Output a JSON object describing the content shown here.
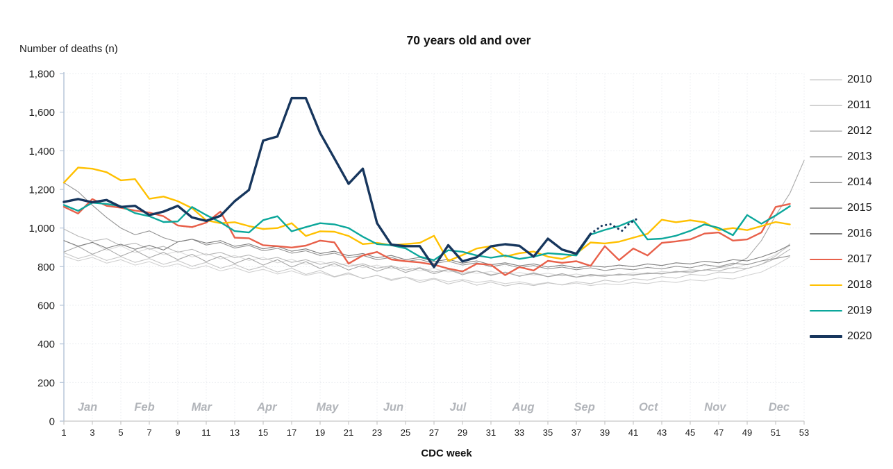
{
  "title": "70 years old and over",
  "y_axis": {
    "label": "Number of deaths (n)",
    "min": 0,
    "max": 1800,
    "step": 200,
    "tick_labels": [
      "0",
      "200",
      "400",
      "600",
      "800",
      "1,000",
      "1,200",
      "1,400",
      "1,600",
      "1,800"
    ]
  },
  "x_axis": {
    "label": "CDC week",
    "min": 1,
    "max": 53,
    "ticks": [
      1,
      3,
      5,
      7,
      9,
      11,
      13,
      15,
      17,
      19,
      21,
      23,
      25,
      27,
      29,
      31,
      33,
      35,
      37,
      39,
      41,
      43,
      45,
      47,
      49,
      51,
      53
    ]
  },
  "month_labels": [
    {
      "label": "Jan",
      "week": 2.66
    },
    {
      "label": "Feb",
      "week": 6.66
    },
    {
      "label": "Mar",
      "week": 10.67
    },
    {
      "label": "Apr",
      "week": 15.26
    },
    {
      "label": "May",
      "week": 19.51
    },
    {
      "label": "Jun",
      "week": 24.14
    },
    {
      "label": "Jul",
      "week": 28.68
    },
    {
      "label": "Aug",
      "week": 33.27
    },
    {
      "label": "Sep",
      "week": 37.57
    },
    {
      "label": "Oct",
      "week": 42.06
    },
    {
      "label": "Nov",
      "week": 46.75
    },
    {
      "label": "Dec",
      "week": 51.24
    }
  ],
  "legend": [
    {
      "label": "2010",
      "color": "#dcdcdc",
      "width": 1.2
    },
    {
      "label": "2011",
      "color": "#d2d2d2",
      "width": 1.2
    },
    {
      "label": "2012",
      "color": "#c6c6c6",
      "width": 1.2
    },
    {
      "label": "2013",
      "color": "#b7b7b7",
      "width": 1.2
    },
    {
      "label": "2014",
      "color": "#a8a8a8",
      "width": 1.2
    },
    {
      "label": "2015",
      "color": "#939393",
      "width": 1.2
    },
    {
      "label": "2016",
      "color": "#7d7d7d",
      "width": 1.2
    },
    {
      "label": "2017",
      "color": "#e8604a",
      "width": 2.4
    },
    {
      "label": "2018",
      "color": "#ffc000",
      "width": 2.4
    },
    {
      "label": "2019",
      "color": "#0ca79b",
      "width": 2.4
    },
    {
      "label": "2020",
      "color": "#17365d",
      "width": 3.4
    }
  ],
  "chart_data": {
    "type": "line",
    "title": "70 years old and over",
    "xlabel": "CDC week",
    "ylabel": "Number of deaths (n)",
    "x_start_week": 1,
    "xlim": [
      1,
      53
    ],
    "ylim": [
      0,
      1800
    ],
    "grid": "dotted horizontal and vertical",
    "legend_position": "right",
    "series": [
      {
        "name": "2010",
        "color": "#dcdcdc",
        "stroke_width": 1.1,
        "values": [
          935,
          902,
          925,
          885,
          908,
          872,
          895,
          862,
          880,
          850,
          868,
          840,
          858,
          832,
          848,
          820,
          838,
          812,
          828,
          802,
          818,
          795,
          808,
          788,
          798,
          778,
          790,
          772,
          782,
          765,
          775,
          760,
          770,
          756,
          766,
          752,
          762,
          750,
          760,
          755,
          768,
          762,
          775,
          770,
          785,
          780,
          795,
          792,
          812,
          828,
          862,
          908
        ]
      },
      {
        "name": "2011",
        "color": "#d2d2d2",
        "stroke_width": 1.1,
        "values": [
          855,
          830,
          848,
          818,
          836,
          808,
          826,
          798,
          815,
          788,
          805,
          778,
          795,
          770,
          786,
          762,
          778,
          754,
          770,
          746,
          762,
          740,
          754,
          734,
          747,
          728,
          740,
          722,
          734,
          718,
          728,
          712,
          722,
          708,
          718,
          705,
          715,
          702,
          712,
          706,
          718,
          712,
          725,
          718,
          732,
          726,
          742,
          736,
          755,
          772,
          808,
          850
        ]
      },
      {
        "name": "2012",
        "color": "#c6c6c6",
        "stroke_width": 1.1,
        "values": [
          872,
          842,
          862,
          832,
          852,
          822,
          842,
          812,
          832,
          802,
          822,
          792,
          812,
          782,
          802,
          772,
          792,
          760,
          780,
          748,
          768,
          738,
          756,
          728,
          746,
          718,
          736,
          710,
          728,
          704,
          720,
          700,
          714,
          702,
          716,
          706,
          722,
          712,
          730,
          720,
          738,
          730,
          748,
          740,
          760,
          754,
          772,
          768,
          790,
          812,
          855,
          918
        ]
      },
      {
        "name": "2013",
        "color": "#b7b7b7",
        "stroke_width": 1.1,
        "values": [
          995,
          958,
          932,
          945,
          908,
          922,
          890,
          905,
          875,
          890,
          860,
          874,
          846,
          860,
          835,
          848,
          822,
          836,
          812,
          825,
          802,
          815,
          792,
          805,
          782,
          795,
          772,
          785,
          765,
          778,
          758,
          770,
          752,
          764,
          748,
          758,
          745,
          755,
          750,
          762,
          755,
          768,
          762,
          776,
          768,
          784,
          778,
          795,
          790,
          812,
          842,
          890
        ]
      },
      {
        "name": "2014",
        "color": "#a8a8a8",
        "stroke_width": 1.1,
        "values": [
          876,
          905,
          864,
          894,
          854,
          884,
          846,
          874,
          836,
          864,
          826,
          854,
          816,
          844,
          808,
          836,
          798,
          826,
          790,
          816,
          782,
          808,
          776,
          800,
          770,
          792,
          763,
          785,
          758,
          778,
          754,
          772,
          750,
          768,
          748,
          764,
          746,
          760,
          752,
          758,
          758,
          764,
          765,
          772,
          776,
          782,
          795,
          810,
          845,
          935,
          1065,
          1180,
          1350
        ]
      },
      {
        "name": "2015",
        "color": "#939393",
        "stroke_width": 1.1,
        "values": [
          1235,
          1188,
          1118,
          1055,
          1000,
          965,
          985,
          950,
          928,
          942,
          912,
          925,
          896,
          910,
          882,
          895,
          870,
          882,
          858,
          870,
          846,
          858,
          836,
          848,
          826,
          838,
          816,
          828,
          808,
          820,
          800,
          812,
          794,
          806,
          788,
          798,
          784,
          794,
          780,
          790,
          784,
          796,
          788,
          802,
          794,
          810,
          800,
          818,
          810,
          830,
          842,
          856
        ]
      },
      {
        "name": "2016",
        "color": "#7d7d7d",
        "stroke_width": 1.1,
        "values": [
          935,
          906,
          926,
          896,
          916,
          890,
          910,
          886,
          928,
          942,
          922,
          935,
          905,
          918,
          892,
          905,
          880,
          892,
          868,
          880,
          856,
          868,
          846,
          858,
          836,
          848,
          826,
          838,
          818,
          830,
          810,
          820,
          804,
          814,
          798,
          808,
          794,
          804,
          798,
          808,
          800,
          814,
          806,
          820,
          814,
          828,
          820,
          836,
          830,
          850,
          876,
          912
        ]
      },
      {
        "name": "2017",
        "color": "#e8604a",
        "stroke_width": 2.4,
        "values": [
          1110,
          1075,
          1150,
          1115,
          1105,
          1090,
          1080,
          1061,
          1013,
          1005,
          1028,
          1085,
          950,
          947,
          911,
          906,
          899,
          909,
          935,
          926,
          816,
          858,
          876,
          837,
          828,
          822,
          810,
          790,
          775,
          815,
          810,
          756,
          798,
          780,
          830,
          820,
          828,
          804,
          906,
          834,
          894,
          858,
          923,
          931,
          941,
          971,
          977,
          935,
          941,
          977,
          1109,
          1125
        ]
      },
      {
        "name": "2018",
        "color": "#ffc000",
        "stroke_width": 2.4,
        "values": [
          1235,
          1313,
          1307,
          1289,
          1247,
          1253,
          1151,
          1163,
          1139,
          1103,
          1040,
          1025,
          1030,
          1010,
          995,
          1000,
          1025,
          959,
          983,
          981,
          959,
          917,
          923,
          911,
          917,
          923,
          960,
          830,
          860,
          894,
          906,
          852,
          870,
          878,
          852,
          840,
          868,
          925,
          920,
          929,
          950,
          970,
          1043,
          1030,
          1040,
          1030,
          989,
          1000,
          989,
          1010,
          1031,
          1019
        ]
      },
      {
        "name": "2019",
        "color": "#0ca79b",
        "stroke_width": 2.4,
        "values": [
          1119,
          1089,
          1131,
          1125,
          1113,
          1077,
          1061,
          1031,
          1034,
          1109,
          1067,
          1030,
          984,
          977,
          1041,
          1061,
          983,
          1005,
          1025,
          1019,
          1000,
          955,
          917,
          911,
          895,
          852,
          834,
          885,
          877,
          858,
          846,
          858,
          840,
          852,
          870,
          864,
          858,
          966,
          990,
          1010,
          1040,
          941,
          945,
          960,
          985,
          1019,
          1001,
          963,
          1067,
          1022,
          1065,
          1113
        ]
      },
      {
        "name": "2020",
        "color": "#17365d",
        "stroke_width": 3.4,
        "values": [
          1135,
          1150,
          1133,
          1145,
          1109,
          1115,
          1067,
          1085,
          1115,
          1055,
          1037,
          1063,
          1139,
          1197,
          1453,
          1474,
          1672,
          1672,
          1492,
          1361,
          1229,
          1307,
          1025,
          914,
          906,
          906,
          798,
          911,
          827,
          849,
          905,
          916,
          908,
          852,
          945,
          888,
          867,
          970
        ],
        "dotted_tail": [
          [
            38,
            970
          ],
          [
            38.8,
            1012
          ],
          [
            39.4,
            1020
          ],
          [
            40.2,
            985
          ],
          [
            40.7,
            1022
          ],
          [
            41.2,
            1045
          ]
        ],
        "note_style": "solid through week 38, dotted weeks 39-41"
      }
    ]
  }
}
